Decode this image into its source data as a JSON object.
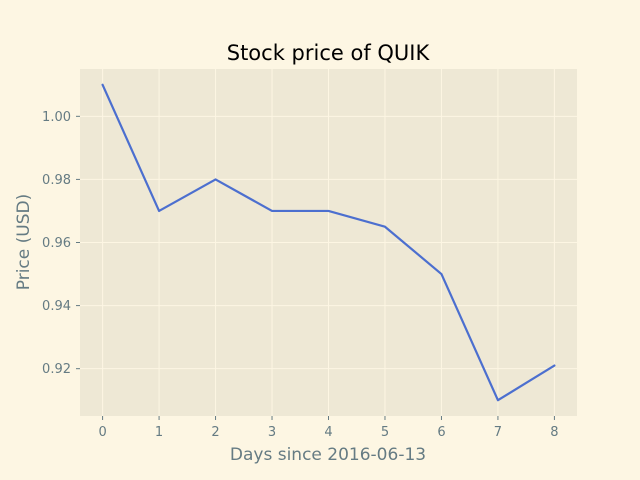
{
  "chart_data": {
    "type": "line",
    "title": "Stock price of QUIK",
    "xlabel": "Days since 2016-06-13",
    "ylabel": "Price (USD)",
    "x": [
      0,
      1,
      2,
      3,
      4,
      5,
      6,
      7,
      8
    ],
    "series": [
      {
        "values": [
          1.01,
          0.97,
          0.98,
          0.97,
          0.97,
          0.965,
          0.95,
          0.91,
          0.921
        ]
      }
    ],
    "xlim": [
      -0.4,
      8.4
    ],
    "ylim": [
      0.905,
      1.015
    ],
    "xticks": [
      "0",
      "1",
      "2",
      "3",
      "4",
      "5",
      "6",
      "7",
      "8"
    ],
    "yticks": [
      "0.92",
      "0.94",
      "0.96",
      "0.98",
      "1.00"
    ],
    "grid": true,
    "colors": {
      "figure_bg": "#fdf6e3",
      "plot_bg": "#eee8d5",
      "grid": "#fdf6e3",
      "line": "#4c6fcf",
      "tick_text": "#657b83"
    }
  }
}
